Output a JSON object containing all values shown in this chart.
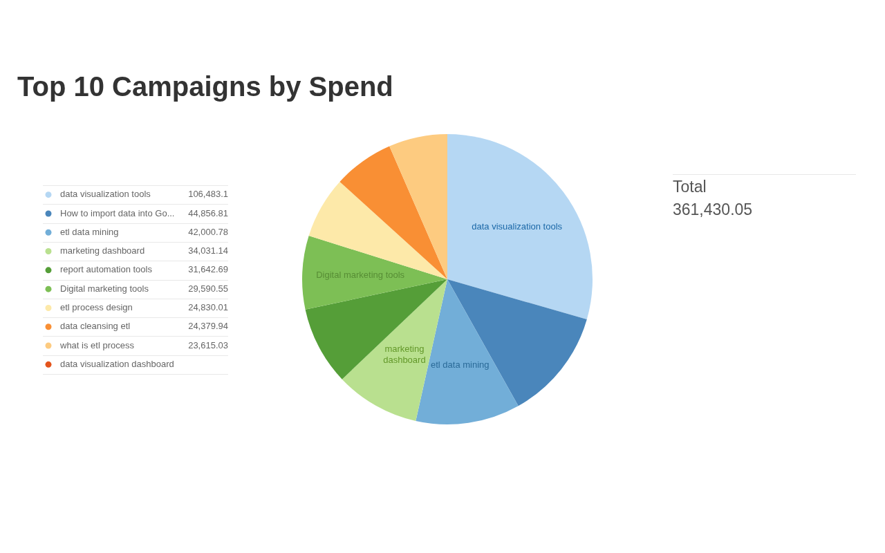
{
  "chart_data": {
    "type": "pie",
    "title": "Top 10 Campaigns by Spend",
    "categories": [
      "data visualization tools",
      "How to import data into Go...",
      "etl data mining",
      "marketing dashboard",
      "report automation tools",
      "Digital marketing tools",
      "etl process design",
      "data cleansing etl",
      "what is etl process",
      "data visualization dashboard"
    ],
    "values": [
      106483.1,
      44856.81,
      42000.78,
      34031.14,
      31642.69,
      29590.55,
      24830.01,
      24379.94,
      23615.03,
      null
    ],
    "value_labels": [
      "106,483.1",
      "44,856.81",
      "42,000.78",
      "34,031.14",
      "31,642.69",
      "29,590.55",
      "24,830.01",
      "24,379.94",
      "23,615.03",
      null
    ],
    "colors": [
      "#b5d7f3",
      "#4a86bb",
      "#72aed8",
      "#b9e08f",
      "#559e38",
      "#7dbf55",
      "#fde9a9",
      "#f98f34",
      "#fdcb80",
      "#e4541c"
    ],
    "legend": "left",
    "annotations": [
      {
        "text": "data visualization tools",
        "x": "data visualization tools"
      },
      {
        "text": "etl data mining",
        "x": "etl data mining"
      },
      {
        "text": "marketing dashboard",
        "x": "marketing dashboard"
      },
      {
        "text": "Digital marketing tools",
        "x": "Digital marketing tools"
      },
      "Total",
      "361,430.05"
    ]
  }
}
